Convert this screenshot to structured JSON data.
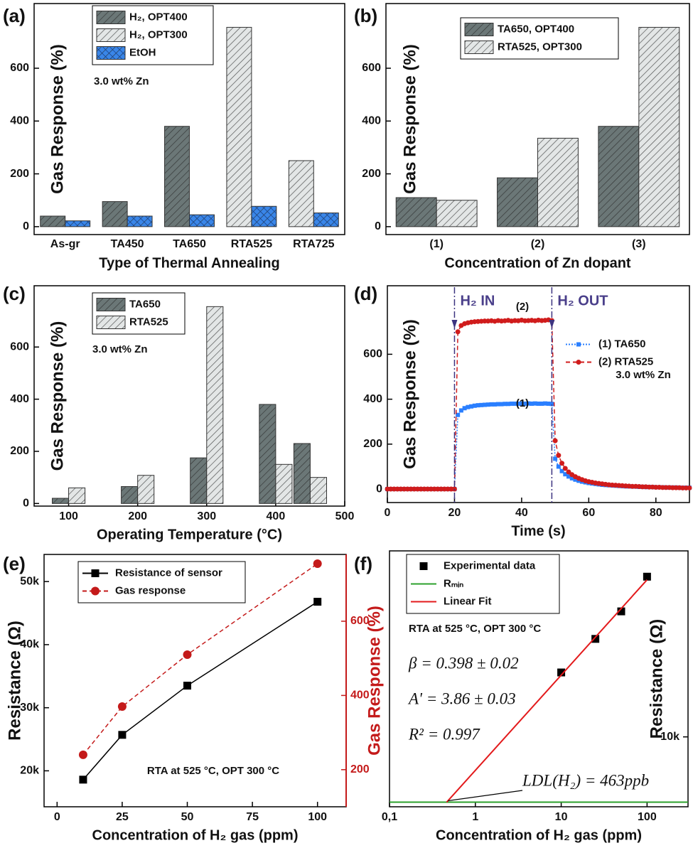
{
  "chart_data": [
    {
      "type": "bar",
      "panel": "(a)",
      "xlabel": "Type of Thermal Annealing",
      "ylabel": "Gas Response (%)",
      "categories": [
        "As-gr",
        "TA450",
        "TA650",
        "RTA525",
        "RTA725"
      ],
      "series": [
        {
          "name": "H₂, OPT400",
          "color": "#6b7777",
          "hatch": "diagonal",
          "values": [
            40,
            95,
            380,
            null,
            null
          ]
        },
        {
          "name": "H₂, OPT300",
          "color": "#e3e6e6",
          "hatch": "diagonal",
          "values": [
            null,
            null,
            null,
            755,
            250
          ]
        },
        {
          "name": "EtOH",
          "color": "#3a86e8",
          "hatch": "cross",
          "values": [
            22,
            40,
            45,
            77,
            52
          ]
        }
      ],
      "ylim": [
        -30,
        845
      ],
      "yticks": [
        0,
        200,
        400,
        600
      ],
      "grid": false,
      "legend": "upper left",
      "annotations": [
        "3.0 wt% Zn"
      ]
    },
    {
      "type": "bar",
      "panel": "(b)",
      "xlabel": "Concentration of Zn dopant",
      "ylabel": "Gas Response (%)",
      "categories": [
        "(1)",
        "(2)",
        "(3)"
      ],
      "series": [
        {
          "name": "TA650, OPT400",
          "color": "#6b7777",
          "hatch": "diagonal",
          "values": [
            110,
            185,
            380
          ]
        },
        {
          "name": "RTA525, OPT300",
          "color": "#e3e6e6",
          "hatch": "diagonal",
          "values": [
            100,
            335,
            755
          ]
        }
      ],
      "ylim": [
        -30,
        845
      ],
      "yticks": [
        0,
        200,
        400,
        600
      ],
      "grid": false,
      "legend": "upper center",
      "annotations": []
    },
    {
      "type": "bar",
      "panel": "(c)",
      "xlabel": "Operating Temperature (°C)",
      "ylabel": "Gas Response (%)",
      "x": [
        100,
        200,
        300,
        400,
        450
      ],
      "series": [
        {
          "name": "TA650",
          "color": "#6b7777",
          "hatch": "diagonal",
          "values": [
            20,
            65,
            175,
            380,
            230
          ]
        },
        {
          "name": "RTA525",
          "color": "#e3e6e6",
          "hatch": "diagonal",
          "values": [
            60,
            108,
            755,
            150,
            100
          ]
        }
      ],
      "xlim": [
        50,
        500
      ],
      "xticks": [
        100,
        200,
        300,
        400,
        500
      ],
      "ylim": [
        -10,
        835
      ],
      "yticks": [
        0,
        200,
        400,
        600
      ],
      "grid": false,
      "legend": "upper left",
      "annotations": [
        "3.0 wt% Zn"
      ]
    },
    {
      "type": "line",
      "panel": "(d)",
      "xlabel": "Time (s)",
      "ylabel": "Gas Response (%)",
      "x": [
        0,
        1,
        2,
        3,
        4,
        5,
        6,
        7,
        8,
        9,
        10,
        11,
        12,
        13,
        14,
        15,
        16,
        17,
        18,
        19,
        20,
        21,
        22,
        23,
        24,
        25,
        26,
        27,
        28,
        29,
        30,
        31,
        32,
        33,
        34,
        35,
        36,
        37,
        38,
        39,
        40,
        41,
        42,
        43,
        44,
        45,
        46,
        47,
        48,
        49,
        50,
        51,
        52,
        53,
        54,
        55,
        56,
        57,
        58,
        59,
        60,
        61,
        62,
        63,
        64,
        65,
        66,
        67,
        68,
        69,
        70,
        71,
        72,
        73,
        74,
        75,
        76,
        77,
        78,
        79,
        80,
        81,
        82,
        83,
        84,
        85,
        86,
        87,
        88,
        89,
        90
      ],
      "series": [
        {
          "name": "(1) TA650",
          "color": "#2a7fff",
          "mode": "lines+markers",
          "marker": "square",
          "dash": "dot",
          "values": [
            0,
            0,
            0,
            0,
            0,
            0,
            0,
            0,
            0,
            0,
            0,
            0,
            0,
            0,
            0,
            0,
            0,
            0,
            0,
            0,
            0,
            330,
            350,
            360,
            365,
            368,
            371,
            373,
            374,
            375,
            376,
            377,
            377,
            378,
            378,
            379,
            379,
            380,
            380,
            380,
            381,
            380,
            381,
            380,
            381,
            380,
            380,
            381,
            380,
            379,
            135,
            100,
            80,
            66,
            56,
            48,
            42,
            37,
            33,
            30,
            27,
            25,
            23,
            21,
            19,
            18,
            17,
            16,
            15,
            14,
            13,
            12,
            12,
            11,
            11,
            10,
            10,
            9,
            9,
            9,
            8,
            8,
            8,
            7,
            7,
            7,
            7,
            6,
            6,
            6,
            6
          ]
        },
        {
          "name": "(2) RTA525",
          "color": "#d01c1c",
          "mode": "lines+markers",
          "marker": "circle",
          "dash": "dash",
          "values": [
            0,
            0,
            0,
            0,
            0,
            0,
            0,
            0,
            0,
            0,
            0,
            0,
            0,
            0,
            0,
            0,
            0,
            0,
            0,
            0,
            0,
            700,
            728,
            736,
            740,
            743,
            745,
            746,
            747,
            748,
            748,
            749,
            747,
            750,
            748,
            749,
            751,
            748,
            750,
            749,
            752,
            749,
            750,
            751,
            749,
            752,
            750,
            751,
            753,
            750,
            215,
            150,
            115,
            92,
            76,
            64,
            55,
            48,
            42,
            37,
            33,
            30,
            27,
            25,
            23,
            21,
            19,
            18,
            17,
            16,
            15,
            14,
            13,
            12,
            12,
            11,
            10,
            10,
            9,
            9,
            8,
            8,
            7,
            7,
            7,
            6,
            6,
            6,
            5,
            5,
            5
          ]
        }
      ],
      "xlim": [
        0,
        90
      ],
      "xticks": [
        0,
        20,
        40,
        60,
        80
      ],
      "ylim": [
        -60,
        905
      ],
      "yticks": [
        0,
        200,
        400,
        600
      ],
      "grid": false,
      "legend": "center right",
      "events": [
        {
          "label": "H₂ IN",
          "x": 20
        },
        {
          "label": "H₂ OUT",
          "x": 49
        }
      ],
      "annotations": [
        "(2)",
        "(1)",
        "3.0 wt% Zn"
      ]
    },
    {
      "type": "line",
      "panel": "(e)",
      "xlabel": "Concentration of H₂ gas (ppm)",
      "ylabel": "Resistance (Ω)",
      "y2label": "Gas Response (%)",
      "x": [
        10,
        25,
        50,
        100
      ],
      "series": [
        {
          "name": "Resistance of sensor",
          "color": "#000000",
          "mode": "lines+markers",
          "marker": "square",
          "dash": "solid",
          "values": [
            18600,
            25700,
            33500,
            46800
          ]
        },
        {
          "name": "Gas response",
          "color": "#c41a1a",
          "mode": "lines+markers",
          "marker": "circle",
          "dash": "dash",
          "axis": "y2",
          "values": [
            240,
            370,
            510,
            755
          ]
        }
      ],
      "xlim": [
        -5,
        111
      ],
      "xticks": [
        0,
        25,
        50,
        75,
        100
      ],
      "ylim": [
        14300,
        54300
      ],
      "yticks": [
        {
          "value": 20000,
          "label": "20k"
        },
        {
          "value": 30000,
          "label": "30k"
        },
        {
          "value": 40000,
          "label": "40k"
        },
        {
          "value": 50000,
          "label": "50k"
        }
      ],
      "y2lim": [
        100,
        780
      ],
      "y2ticks": [
        200,
        400,
        600
      ],
      "grid": false,
      "legend": "upper left",
      "annotations": [
        "RTA at 525 °C, OPT 300 °C"
      ]
    },
    {
      "type": "scatter",
      "panel": "(f)",
      "xlabel": "Concentration of H₂ gas (ppm)",
      "ylabel": "Resistance (Ω)",
      "xlog": true,
      "ylog": true,
      "yaxis_side": "right",
      "series": [
        {
          "name": "Experimental data",
          "color": "#000000",
          "mode": "markers",
          "marker": "square",
          "x": [
            10,
            25,
            50,
            100
          ],
          "values": [
            18600,
            25700,
            33500,
            46800
          ]
        },
        {
          "name": "Rₘᵢₙ",
          "color": "#2ca02c",
          "mode": "lines",
          "dash": "solid",
          "x": [
            0.1,
            300
          ],
          "values": [
            5330,
            5330
          ]
        },
        {
          "name": "Linear Fit",
          "color": "#e31a1c",
          "mode": "lines",
          "dash": "solid",
          "x": [
            0.463,
            100
          ],
          "values": [
            5330,
            45400
          ]
        }
      ],
      "xlim": [
        0.1,
        300
      ],
      "xticks": [
        {
          "value": 0.1,
          "label": "0,1"
        },
        1,
        10,
        100
      ],
      "ylim": [
        5100,
        60000
      ],
      "yticks": [
        {
          "value": 10000,
          "label": "10k"
        }
      ],
      "grid": false,
      "legend": "upper left",
      "annotations": [
        "RTA at 525 °C, OPT 300 °C",
        "β = 0.398 ± 0.02",
        "A' = 3.86 ± 0.03",
        "R² = 0.997",
        "LDL(H₂) = 463ppb"
      ]
    }
  ]
}
